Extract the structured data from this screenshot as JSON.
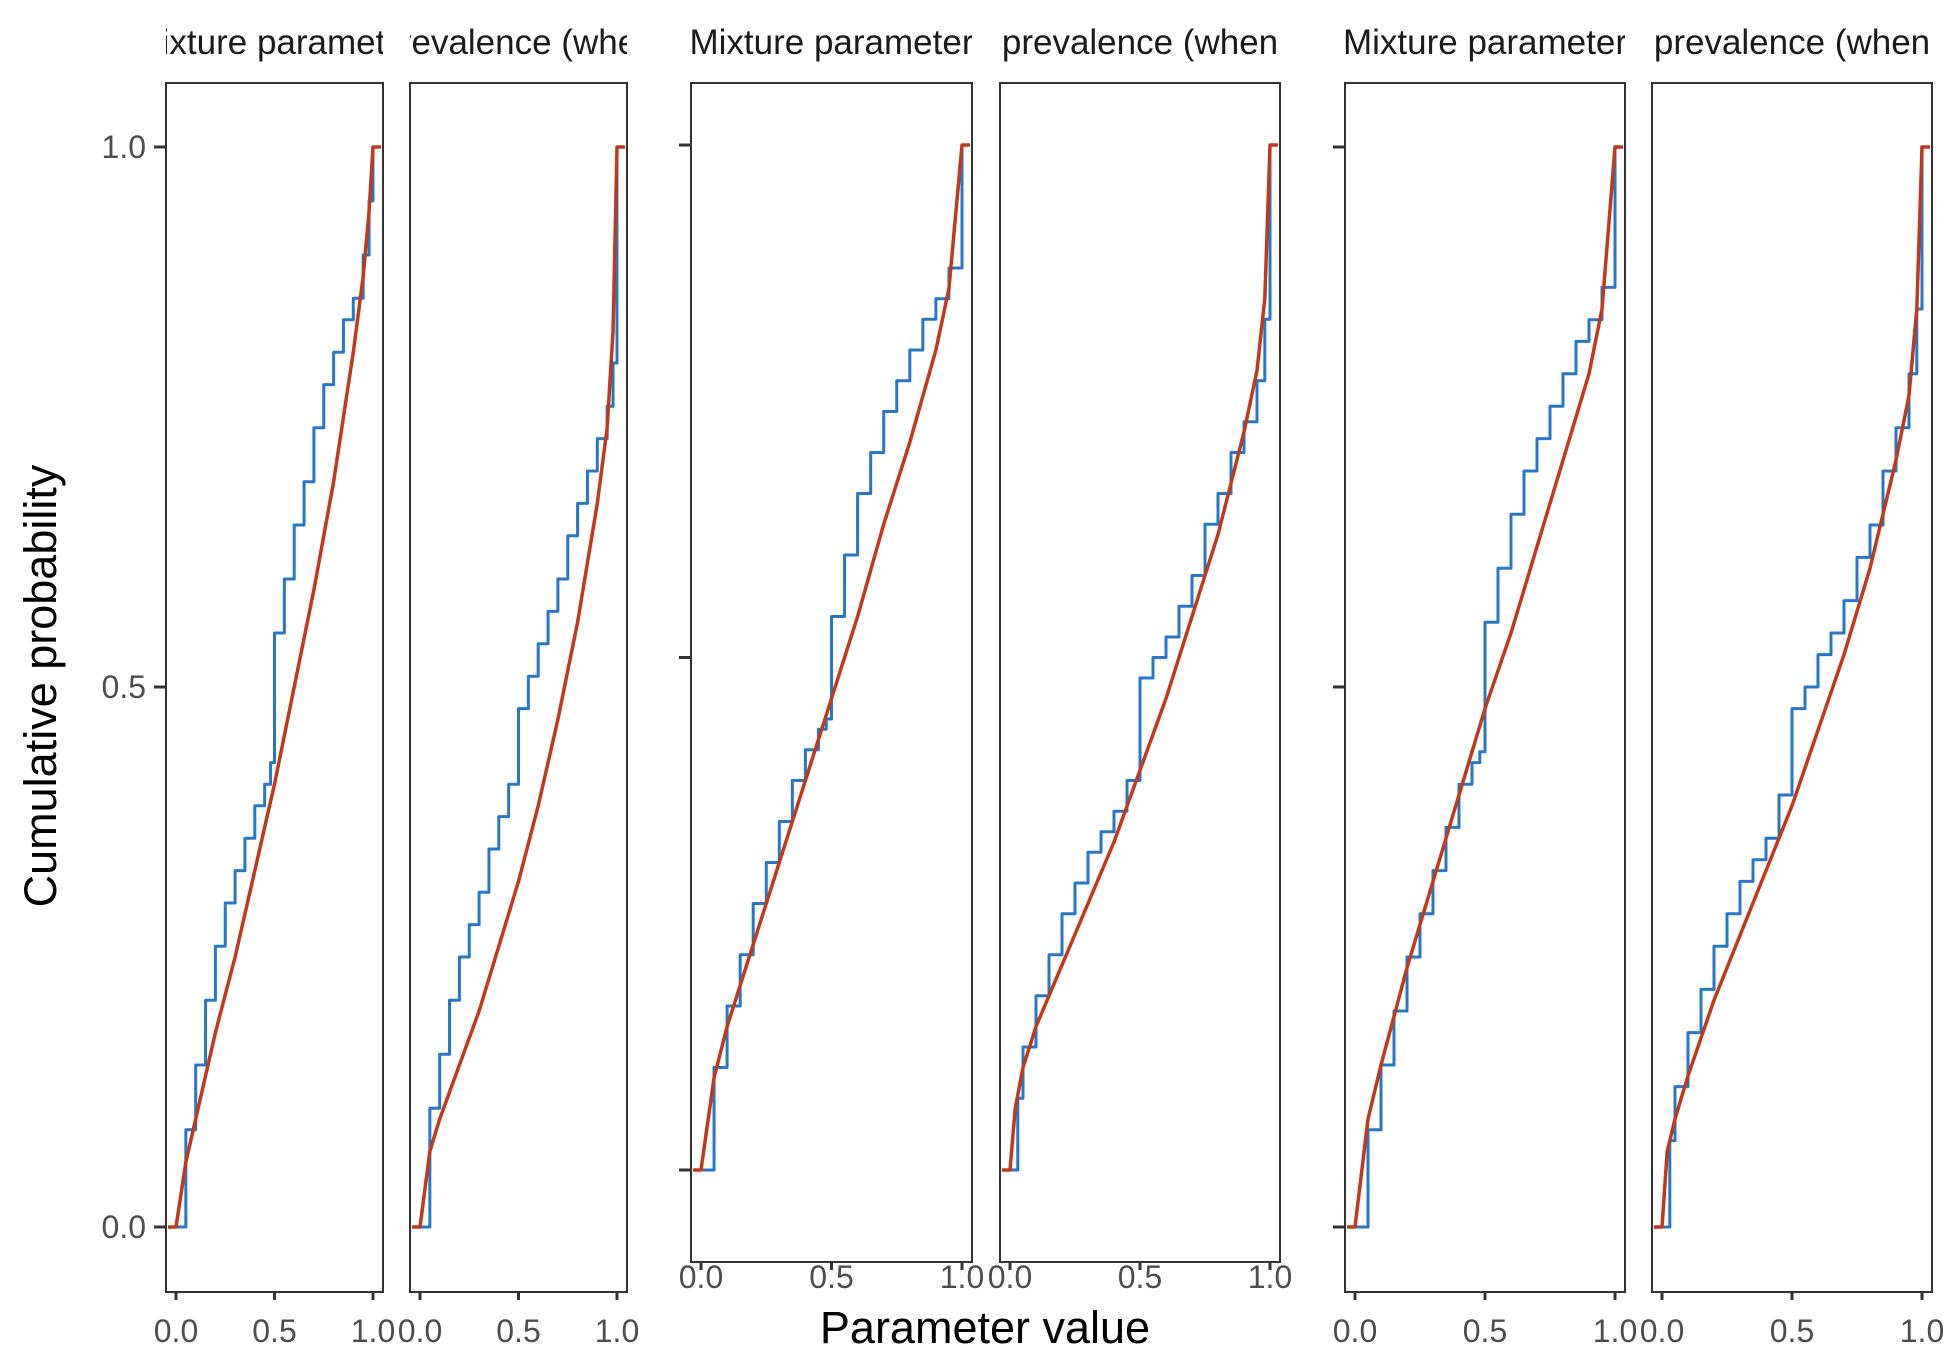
{
  "chart_data": {
    "type": "line",
    "ylabel": "Cumulative probability",
    "xlabel": "Parameter value",
    "colors": {
      "empirical": "#2477C9",
      "theoretical": "#C0391B",
      "frame": "#333333",
      "ticks_text": "#4d4d4d"
    },
    "groups": [
      {
        "panels": [
          {
            "strip": "Mixture parameter",
            "xlim": [
              0,
              1
            ],
            "ylim": [
              0,
              1
            ],
            "x_ticks": [
              "0.0",
              "0.5",
              "1.0"
            ],
            "y_ticks": [
              "0.0",
              "0.5",
              "1.0"
            ],
            "empirical": {
              "x": [
                0,
                0.05,
                0.1,
                0.15,
                0.2,
                0.25,
                0.3,
                0.35,
                0.4,
                0.45,
                0.48,
                0.5,
                0.5,
                0.55,
                0.6,
                0.65,
                0.7,
                0.75,
                0.8,
                0.85,
                0.9,
                0.95,
                0.98,
                1.0
              ],
              "y": [
                0,
                0.09,
                0.15,
                0.21,
                0.26,
                0.3,
                0.33,
                0.36,
                0.39,
                0.41,
                0.43,
                0.43,
                0.55,
                0.6,
                0.65,
                0.69,
                0.74,
                0.78,
                0.81,
                0.84,
                0.86,
                0.9,
                0.95,
                1.0
              ]
            },
            "theoretical": {
              "x": [
                0,
                0.05,
                0.1,
                0.2,
                0.3,
                0.4,
                0.5,
                0.6,
                0.7,
                0.8,
                0.9,
                0.95,
                0.98,
                1.0
              ],
              "y": [
                0,
                0.06,
                0.1,
                0.18,
                0.25,
                0.33,
                0.41,
                0.5,
                0.59,
                0.69,
                0.81,
                0.88,
                0.94,
                1.0
              ]
            }
          },
          {
            "strip": "prevalence (when",
            "xlim": [
              0,
              1
            ],
            "ylim": [
              0,
              1
            ],
            "x_ticks": [
              "0.0",
              "0.5",
              "1.0"
            ],
            "empirical": {
              "x": [
                0,
                0.05,
                0.1,
                0.15,
                0.2,
                0.25,
                0.3,
                0.35,
                0.4,
                0.45,
                0.5,
                0.5,
                0.55,
                0.6,
                0.65,
                0.7,
                0.75,
                0.8,
                0.85,
                0.9,
                0.95,
                0.98,
                1.0
              ],
              "y": [
                0,
                0.11,
                0.16,
                0.21,
                0.25,
                0.28,
                0.31,
                0.35,
                0.38,
                0.41,
                0.41,
                0.48,
                0.51,
                0.54,
                0.57,
                0.6,
                0.64,
                0.67,
                0.7,
                0.73,
                0.76,
                0.8,
                1.0
              ]
            },
            "theoretical": {
              "x": [
                0,
                0.05,
                0.1,
                0.2,
                0.3,
                0.4,
                0.5,
                0.6,
                0.7,
                0.8,
                0.9,
                0.95,
                0.98,
                1.0
              ],
              "y": [
                0,
                0.07,
                0.1,
                0.15,
                0.2,
                0.26,
                0.32,
                0.39,
                0.47,
                0.56,
                0.67,
                0.74,
                0.83,
                1.0
              ]
            }
          }
        ]
      },
      {
        "panels": [
          {
            "strip": "Mixture parameter",
            "xlim": [
              0,
              1
            ],
            "ylim": [
              0,
              1
            ],
            "x_ticks": [
              "0.0",
              "0.5",
              "1.0"
            ],
            "empirical": {
              "x": [
                0,
                0.05,
                0.1,
                0.15,
                0.2,
                0.25,
                0.3,
                0.35,
                0.4,
                0.45,
                0.48,
                0.5,
                0.5,
                0.55,
                0.6,
                0.65,
                0.7,
                0.75,
                0.8,
                0.85,
                0.9,
                0.95,
                1.0
              ],
              "y": [
                0,
                0.1,
                0.16,
                0.21,
                0.26,
                0.3,
                0.34,
                0.38,
                0.41,
                0.43,
                0.44,
                0.44,
                0.54,
                0.6,
                0.66,
                0.7,
                0.74,
                0.77,
                0.8,
                0.83,
                0.85,
                0.88,
                1.0
              ]
            },
            "theoretical": {
              "x": [
                0,
                0.05,
                0.1,
                0.2,
                0.3,
                0.4,
                0.5,
                0.6,
                0.7,
                0.8,
                0.9,
                0.95,
                1.0
              ],
              "y": [
                0,
                0.09,
                0.14,
                0.22,
                0.3,
                0.38,
                0.46,
                0.54,
                0.63,
                0.71,
                0.8,
                0.86,
                1.0
              ]
            }
          },
          {
            "strip": "prevalence (when",
            "xlim": [
              0,
              1
            ],
            "ylim": [
              0,
              1
            ],
            "x_ticks": [
              "0.0",
              "0.5",
              "1.0"
            ],
            "empirical": {
              "x": [
                0,
                0.03,
                0.05,
                0.1,
                0.15,
                0.2,
                0.25,
                0.3,
                0.35,
                0.4,
                0.45,
                0.5,
                0.5,
                0.55,
                0.6,
                0.65,
                0.7,
                0.75,
                0.8,
                0.85,
                0.9,
                0.95,
                0.98,
                1.0
              ],
              "y": [
                0,
                0.07,
                0.12,
                0.17,
                0.21,
                0.25,
                0.28,
                0.31,
                0.33,
                0.35,
                0.38,
                0.41,
                0.48,
                0.5,
                0.52,
                0.55,
                0.58,
                0.63,
                0.66,
                0.7,
                0.73,
                0.77,
                0.83,
                1.0
              ]
            },
            "theoretical": {
              "x": [
                0,
                0.02,
                0.05,
                0.1,
                0.2,
                0.3,
                0.4,
                0.5,
                0.6,
                0.7,
                0.8,
                0.9,
                0.95,
                0.98,
                1.0
              ],
              "y": [
                0,
                0.06,
                0.1,
                0.14,
                0.2,
                0.26,
                0.32,
                0.39,
                0.46,
                0.54,
                0.62,
                0.72,
                0.78,
                0.85,
                1.0
              ]
            }
          }
        ]
      },
      {
        "panels": [
          {
            "strip": "Mixture parameter",
            "xlim": [
              0,
              1
            ],
            "ylim": [
              0,
              1
            ],
            "x_ticks": [
              "0.0",
              "0.5",
              "1.0"
            ],
            "empirical": {
              "x": [
                0,
                0.05,
                0.1,
                0.15,
                0.2,
                0.25,
                0.3,
                0.35,
                0.4,
                0.45,
                0.48,
                0.5,
                0.5,
                0.55,
                0.6,
                0.65,
                0.7,
                0.75,
                0.8,
                0.85,
                0.9,
                0.95,
                1.0
              ],
              "y": [
                0,
                0.09,
                0.15,
                0.2,
                0.25,
                0.29,
                0.33,
                0.37,
                0.41,
                0.43,
                0.44,
                0.44,
                0.56,
                0.61,
                0.66,
                0.7,
                0.73,
                0.76,
                0.79,
                0.82,
                0.84,
                0.87,
                1.0
              ]
            },
            "theoretical": {
              "x": [
                0,
                0.05,
                0.1,
                0.2,
                0.3,
                0.4,
                0.5,
                0.6,
                0.7,
                0.8,
                0.9,
                0.95,
                1.0
              ],
              "y": [
                0,
                0.1,
                0.15,
                0.24,
                0.32,
                0.4,
                0.48,
                0.55,
                0.63,
                0.71,
                0.79,
                0.85,
                1.0
              ]
            }
          },
          {
            "strip": "prevalence (when",
            "xlim": [
              0,
              1
            ],
            "ylim": [
              0,
              1
            ],
            "x_ticks": [
              "0.0",
              "0.5",
              "1.0"
            ],
            "empirical": {
              "x": [
                0,
                0.03,
                0.05,
                0.1,
                0.15,
                0.2,
                0.25,
                0.3,
                0.35,
                0.4,
                0.45,
                0.5,
                0.5,
                0.55,
                0.6,
                0.65,
                0.7,
                0.75,
                0.8,
                0.85,
                0.9,
                0.95,
                0.98,
                1.0
              ],
              "y": [
                0,
                0.08,
                0.13,
                0.18,
                0.22,
                0.26,
                0.29,
                0.32,
                0.34,
                0.36,
                0.4,
                0.43,
                0.48,
                0.5,
                0.53,
                0.55,
                0.58,
                0.62,
                0.65,
                0.7,
                0.74,
                0.79,
                0.85,
                1.0
              ]
            },
            "theoretical": {
              "x": [
                0,
                0.02,
                0.05,
                0.1,
                0.2,
                0.3,
                0.4,
                0.5,
                0.6,
                0.7,
                0.8,
                0.9,
                0.95,
                0.98,
                1.0
              ],
              "y": [
                0,
                0.07,
                0.1,
                0.14,
                0.21,
                0.27,
                0.33,
                0.39,
                0.46,
                0.53,
                0.61,
                0.71,
                0.77,
                0.85,
                1.0
              ]
            }
          }
        ]
      }
    ]
  }
}
